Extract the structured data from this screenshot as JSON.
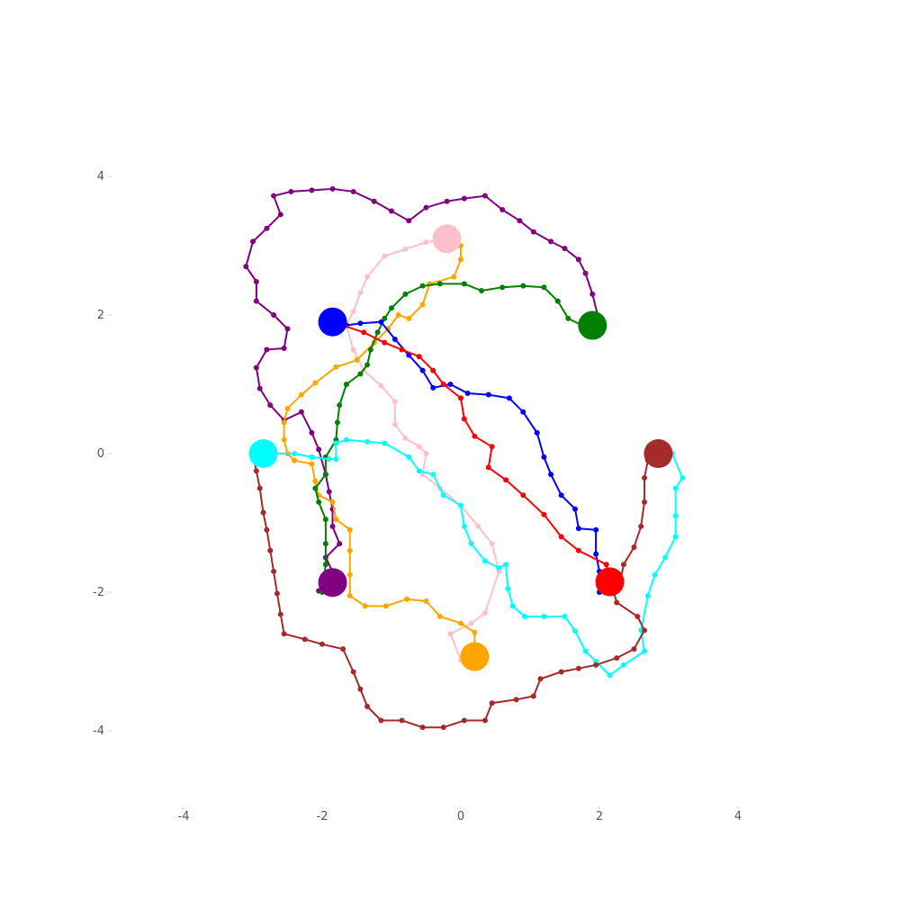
{
  "chart_data": {
    "type": "line",
    "title": "",
    "xlabel": "",
    "ylabel": "",
    "xlim": [
      -5,
      5
    ],
    "ylim": [
      -5,
      5
    ],
    "grid": false,
    "x_ticks": [
      -4,
      -2,
      0,
      2,
      4
    ],
    "y_ticks": [
      4,
      2,
      0,
      -2,
      -4
    ],
    "x_tick_labels": [
      "-4",
      "-2",
      "0",
      "2",
      "4"
    ],
    "y_tick_labels": [
      "4",
      "2",
      "0",
      "-2",
      "-4"
    ],
    "series": [
      {
        "name": "purple",
        "color": "#800080",
        "end": [
          -1.85,
          -1.86
        ],
        "points": [
          [
            2.0,
            1.9
          ],
          [
            1.9,
            2.3
          ],
          [
            1.8,
            2.6
          ],
          [
            1.7,
            2.8
          ],
          [
            1.5,
            2.96
          ],
          [
            1.3,
            3.06
          ],
          [
            1.05,
            3.2
          ],
          [
            0.85,
            3.36
          ],
          [
            0.6,
            3.52
          ],
          [
            0.35,
            3.72
          ],
          [
            0.05,
            3.68
          ],
          [
            -0.2,
            3.64
          ],
          [
            -0.5,
            3.55
          ],
          [
            -0.75,
            3.36
          ],
          [
            -1.0,
            3.5
          ],
          [
            -1.25,
            3.64
          ],
          [
            -1.55,
            3.78
          ],
          [
            -1.85,
            3.82
          ],
          [
            -2.15,
            3.8
          ],
          [
            -2.45,
            3.78
          ],
          [
            -2.7,
            3.72
          ],
          [
            -2.6,
            3.45
          ],
          [
            -2.8,
            3.25
          ],
          [
            -3.0,
            3.06
          ],
          [
            -3.1,
            2.7
          ],
          [
            -2.95,
            2.48
          ],
          [
            -2.95,
            2.2
          ],
          [
            -2.7,
            2.0
          ],
          [
            -2.5,
            1.8
          ],
          [
            -2.55,
            1.52
          ],
          [
            -2.8,
            1.5
          ],
          [
            -2.95,
            1.24
          ],
          [
            -2.9,
            0.94
          ],
          [
            -2.75,
            0.7
          ],
          [
            -2.55,
            0.48
          ],
          [
            -2.3,
            0.6
          ],
          [
            -2.15,
            0.3
          ],
          [
            -2.05,
            0.06
          ],
          [
            -1.95,
            -0.3
          ],
          [
            -1.9,
            -0.55
          ],
          [
            -1.85,
            -0.8
          ],
          [
            -1.85,
            -1.05
          ],
          [
            -1.75,
            -1.3
          ],
          [
            -1.95,
            -1.5
          ],
          [
            -1.85,
            -1.7
          ],
          [
            -2.05,
            -1.98
          ],
          [
            -1.85,
            -1.86
          ]
        ]
      },
      {
        "name": "pink",
        "color": "#ffc0cb",
        "end": [
          -0.2,
          3.1
        ],
        "points": [
          [
            0.0,
            -2.98
          ],
          [
            -0.15,
            -2.6
          ],
          [
            0.15,
            -2.45
          ],
          [
            0.35,
            -2.3
          ],
          [
            0.55,
            -1.7
          ],
          [
            0.45,
            -1.3
          ],
          [
            0.25,
            -1.05
          ],
          [
            0.0,
            -0.75
          ],
          [
            -0.3,
            -0.5
          ],
          [
            -0.55,
            -0.3
          ],
          [
            -0.5,
            0.0
          ],
          [
            -0.6,
            0.1
          ],
          [
            -0.8,
            0.22
          ],
          [
            -0.95,
            0.42
          ],
          [
            -0.95,
            0.75
          ],
          [
            -1.15,
            0.98
          ],
          [
            -1.4,
            1.2
          ],
          [
            -1.55,
            1.5
          ],
          [
            -1.65,
            1.85
          ],
          [
            -1.55,
            2.05
          ],
          [
            -1.45,
            2.32
          ],
          [
            -1.35,
            2.55
          ],
          [
            -1.1,
            2.85
          ],
          [
            -0.8,
            2.95
          ],
          [
            -0.5,
            3.05
          ],
          [
            -0.2,
            3.1
          ]
        ]
      },
      {
        "name": "orange",
        "color": "#ffa500",
        "end": [
          0.2,
          -2.93
        ],
        "points": [
          [
            0.0,
            3.0
          ],
          [
            0.0,
            2.8
          ],
          [
            -0.1,
            2.55
          ],
          [
            -0.45,
            2.45
          ],
          [
            -0.55,
            2.15
          ],
          [
            -0.75,
            1.95
          ],
          [
            -0.9,
            2.0
          ],
          [
            -1.05,
            1.8
          ],
          [
            -1.25,
            1.6
          ],
          [
            -1.5,
            1.35
          ],
          [
            -1.8,
            1.25
          ],
          [
            -2.1,
            1.02
          ],
          [
            -2.3,
            0.85
          ],
          [
            -2.5,
            0.65
          ],
          [
            -2.55,
            0.45
          ],
          [
            -2.55,
            0.2
          ],
          [
            -2.5,
            0.0
          ],
          [
            -2.4,
            -0.1
          ],
          [
            -2.15,
            -0.15
          ],
          [
            -2.1,
            -0.4
          ],
          [
            -2.05,
            -0.6
          ],
          [
            -1.85,
            -0.7
          ],
          [
            -1.8,
            -0.95
          ],
          [
            -1.6,
            -1.1
          ],
          [
            -1.6,
            -1.4
          ],
          [
            -1.6,
            -1.75
          ],
          [
            -1.6,
            -2.05
          ],
          [
            -1.38,
            -2.2
          ],
          [
            -1.08,
            -2.2
          ],
          [
            -0.78,
            -2.1
          ],
          [
            -0.5,
            -2.13
          ],
          [
            -0.3,
            -2.35
          ],
          [
            0.0,
            -2.45
          ],
          [
            0.2,
            -2.58
          ],
          [
            0.2,
            -2.93
          ]
        ]
      },
      {
        "name": "green",
        "color": "#008000",
        "end": [
          1.9,
          1.85
        ],
        "points": [
          [
            -2.0,
            -2.0
          ],
          [
            -1.95,
            -1.6
          ],
          [
            -1.95,
            -1.3
          ],
          [
            -1.95,
            -0.95
          ],
          [
            -2.05,
            -0.7
          ],
          [
            -2.1,
            -0.5
          ],
          [
            -1.95,
            -0.3
          ],
          [
            -1.95,
            -0.05
          ],
          [
            -1.8,
            0.2
          ],
          [
            -1.78,
            0.45
          ],
          [
            -1.75,
            0.7
          ],
          [
            -1.65,
            1.0
          ],
          [
            -1.45,
            1.15
          ],
          [
            -1.35,
            1.28
          ],
          [
            -1.3,
            1.5
          ],
          [
            -1.2,
            1.75
          ],
          [
            -1.1,
            1.95
          ],
          [
            -1.0,
            2.1
          ],
          [
            -0.8,
            2.3
          ],
          [
            -0.55,
            2.42
          ],
          [
            -0.3,
            2.45
          ],
          [
            0.05,
            2.45
          ],
          [
            0.3,
            2.35
          ],
          [
            0.6,
            2.4
          ],
          [
            0.9,
            2.42
          ],
          [
            1.2,
            2.4
          ],
          [
            1.4,
            2.2
          ],
          [
            1.55,
            1.95
          ],
          [
            1.75,
            1.85
          ],
          [
            1.9,
            1.85
          ]
        ]
      },
      {
        "name": "blue",
        "color": "#0000ff",
        "end": [
          -1.85,
          1.9
        ],
        "points": [
          [
            2.0,
            -2.0
          ],
          [
            2.2,
            -1.92
          ],
          [
            2.0,
            -1.7
          ],
          [
            1.95,
            -1.45
          ],
          [
            1.95,
            -1.1
          ],
          [
            1.7,
            -1.08
          ],
          [
            1.65,
            -0.8
          ],
          [
            1.45,
            -0.6
          ],
          [
            1.3,
            -0.3
          ],
          [
            1.2,
            -0.05
          ],
          [
            1.1,
            0.3
          ],
          [
            0.9,
            0.6
          ],
          [
            0.7,
            0.8
          ],
          [
            0.4,
            0.85
          ],
          [
            0.1,
            0.87
          ],
          [
            -0.15,
            1.0
          ],
          [
            -0.4,
            0.95
          ],
          [
            -0.55,
            1.2
          ],
          [
            -0.75,
            1.42
          ],
          [
            -0.95,
            1.65
          ],
          [
            -1.15,
            1.9
          ],
          [
            -1.45,
            1.88
          ],
          [
            -1.65,
            1.85
          ],
          [
            -1.85,
            1.9
          ]
        ]
      },
      {
        "name": "red",
        "color": "#ff0000",
        "end": [
          2.15,
          -1.85
        ],
        "points": [
          [
            2.15,
            -1.85
          ],
          [
            2.1,
            -1.6
          ],
          [
            1.7,
            -1.4
          ],
          [
            1.45,
            -1.2
          ],
          [
            1.2,
            -0.88
          ],
          [
            0.9,
            -0.6
          ],
          [
            0.65,
            -0.38
          ],
          [
            0.4,
            -0.2
          ],
          [
            0.45,
            0.1
          ],
          [
            0.2,
            0.25
          ],
          [
            0.05,
            0.5
          ],
          [
            0.0,
            0.8
          ],
          [
            -0.25,
            1.0
          ],
          [
            -0.4,
            1.2
          ],
          [
            -0.6,
            1.4
          ],
          [
            -0.85,
            1.5
          ],
          [
            -1.1,
            1.6
          ],
          [
            -1.4,
            1.75
          ],
          [
            -1.85,
            1.9
          ]
        ]
      },
      {
        "name": "cyan",
        "color": "#00ffff",
        "end": [
          -2.85,
          0.0
        ],
        "points": [
          [
            3.05,
            0.0
          ],
          [
            3.2,
            -0.35
          ],
          [
            3.1,
            -0.5
          ],
          [
            3.1,
            -0.9
          ],
          [
            3.1,
            -1.2
          ],
          [
            2.95,
            -1.5
          ],
          [
            2.8,
            -1.75
          ],
          [
            2.7,
            -2.05
          ],
          [
            2.6,
            -2.55
          ],
          [
            2.65,
            -2.85
          ],
          [
            2.35,
            -3.05
          ],
          [
            2.15,
            -3.2
          ],
          [
            1.95,
            -3.0
          ],
          [
            1.8,
            -2.85
          ],
          [
            1.65,
            -2.56
          ],
          [
            1.5,
            -2.35
          ],
          [
            1.2,
            -2.35
          ],
          [
            0.92,
            -2.35
          ],
          [
            0.75,
            -2.2
          ],
          [
            0.68,
            -1.95
          ],
          [
            0.65,
            -1.6
          ],
          [
            0.55,
            -1.65
          ],
          [
            0.35,
            -1.55
          ],
          [
            0.15,
            -1.3
          ],
          [
            0.05,
            -1.05
          ],
          [
            0.0,
            -0.75
          ],
          [
            -0.25,
            -0.6
          ],
          [
            -0.4,
            -0.3
          ],
          [
            -0.6,
            -0.25
          ],
          [
            -0.75,
            -0.05
          ],
          [
            -1.1,
            0.15
          ],
          [
            -1.35,
            0.17
          ],
          [
            -1.65,
            0.2
          ],
          [
            -1.8,
            0.15
          ],
          [
            -1.8,
            -0.08
          ],
          [
            -1.9,
            -0.08
          ],
          [
            -2.15,
            -0.05
          ],
          [
            -2.4,
            0.0
          ],
          [
            -2.85,
            0.0
          ]
        ]
      },
      {
        "name": "brown",
        "color": "#a52a2a",
        "end": [
          2.85,
          0.0
        ],
        "points": [
          [
            -3.0,
            0.0
          ],
          [
            -2.95,
            -0.25
          ],
          [
            -2.9,
            -0.5
          ],
          [
            -2.85,
            -0.85
          ],
          [
            -2.8,
            -1.1
          ],
          [
            -2.75,
            -1.4
          ],
          [
            -2.7,
            -1.7
          ],
          [
            -2.65,
            -2.02
          ],
          [
            -2.6,
            -2.32
          ],
          [
            -2.55,
            -2.6
          ],
          [
            -2.25,
            -2.68
          ],
          [
            -2.0,
            -2.75
          ],
          [
            -1.7,
            -2.82
          ],
          [
            -1.55,
            -3.15
          ],
          [
            -1.45,
            -3.4
          ],
          [
            -1.35,
            -3.65
          ],
          [
            -1.15,
            -3.85
          ],
          [
            -0.85,
            -3.85
          ],
          [
            -0.55,
            -3.95
          ],
          [
            -0.25,
            -3.95
          ],
          [
            0.05,
            -3.85
          ],
          [
            0.35,
            -3.85
          ],
          [
            0.45,
            -3.6
          ],
          [
            0.8,
            -3.55
          ],
          [
            1.05,
            -3.5
          ],
          [
            1.15,
            -3.25
          ],
          [
            1.45,
            -3.15
          ],
          [
            1.7,
            -3.1
          ],
          [
            1.95,
            -3.05
          ],
          [
            2.25,
            -2.95
          ],
          [
            2.5,
            -2.82
          ],
          [
            2.65,
            -2.55
          ],
          [
            2.55,
            -2.35
          ],
          [
            2.25,
            -2.15
          ],
          [
            2.2,
            -1.98
          ],
          [
            2.3,
            -1.85
          ],
          [
            2.35,
            -1.6
          ],
          [
            2.5,
            -1.35
          ],
          [
            2.6,
            -1.05
          ],
          [
            2.65,
            -0.7
          ],
          [
            2.65,
            -0.35
          ],
          [
            2.7,
            -0.1
          ],
          [
            2.85,
            0.0
          ]
        ]
      }
    ]
  }
}
